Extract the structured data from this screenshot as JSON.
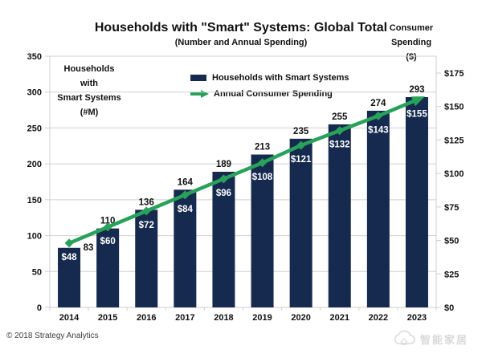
{
  "title": "Households with \"Smart\" Systems: Global Total",
  "subtitle": "(Number and Annual Spending)",
  "left_axis_title": {
    "line1": "Households",
    "line2": "with",
    "line3": "Smart Systems",
    "line4": "(#M)"
  },
  "right_axis_title": {
    "line1": "Consumer",
    "line2": "Spending",
    "line3": "($)"
  },
  "legend": {
    "bar_label": "Households with Smart Systems",
    "line_label": "Annual Consumer Spending"
  },
  "footer": {
    "copyright": "© 2018 Strategy Analytics"
  },
  "watermark": {
    "text": "智能家居"
  },
  "colors": {
    "bar": "#16294e",
    "line": "#28a25a",
    "grid": "#cfcfcf",
    "axis_text": "#111111",
    "bar_value_text": "#ffffff"
  },
  "chart_data": {
    "type": "bar",
    "subtype": "bar+line combo, dual axis",
    "title": "Households with \"Smart\" Systems: Global Total",
    "subtitle": "(Number and Annual Spending)",
    "categories": [
      "2014",
      "2015",
      "2016",
      "2017",
      "2018",
      "2019",
      "2020",
      "2021",
      "2022",
      "2023"
    ],
    "series": [
      {
        "name": "Households with Smart Systems",
        "type": "bar",
        "axis": "left",
        "values": [
          83,
          110,
          136,
          164,
          189,
          213,
          235,
          255,
          274,
          293
        ],
        "labels": [
          "83",
          "110",
          "136",
          "164",
          "189",
          "213",
          "235",
          "255",
          "274",
          "293"
        ]
      },
      {
        "name": "Annual Consumer Spending",
        "type": "line",
        "axis": "right",
        "values": [
          48,
          60,
          72,
          84,
          96,
          108,
          121,
          132,
          143,
          155
        ],
        "labels": [
          "$48",
          "$60",
          "$72",
          "$84",
          "$96",
          "$108",
          "$121",
          "$132",
          "$143",
          "$155"
        ]
      }
    ],
    "left_axis": {
      "label": "Households with Smart Systems (#M)",
      "min": 0,
      "max": 350,
      "step": 50,
      "tick_labels": [
        "0",
        "50",
        "100",
        "150",
        "200",
        "250",
        "300",
        "350"
      ]
    },
    "right_axis": {
      "label": "Consumer Spending ($)",
      "min": 0,
      "max": 175,
      "step": 25,
      "tick_labels": [
        "$0",
        "$25",
        "$50",
        "$75",
        "$100",
        "$125",
        "$150",
        "$175"
      ]
    },
    "grid": "horizontal",
    "legend_position": "top-center"
  }
}
